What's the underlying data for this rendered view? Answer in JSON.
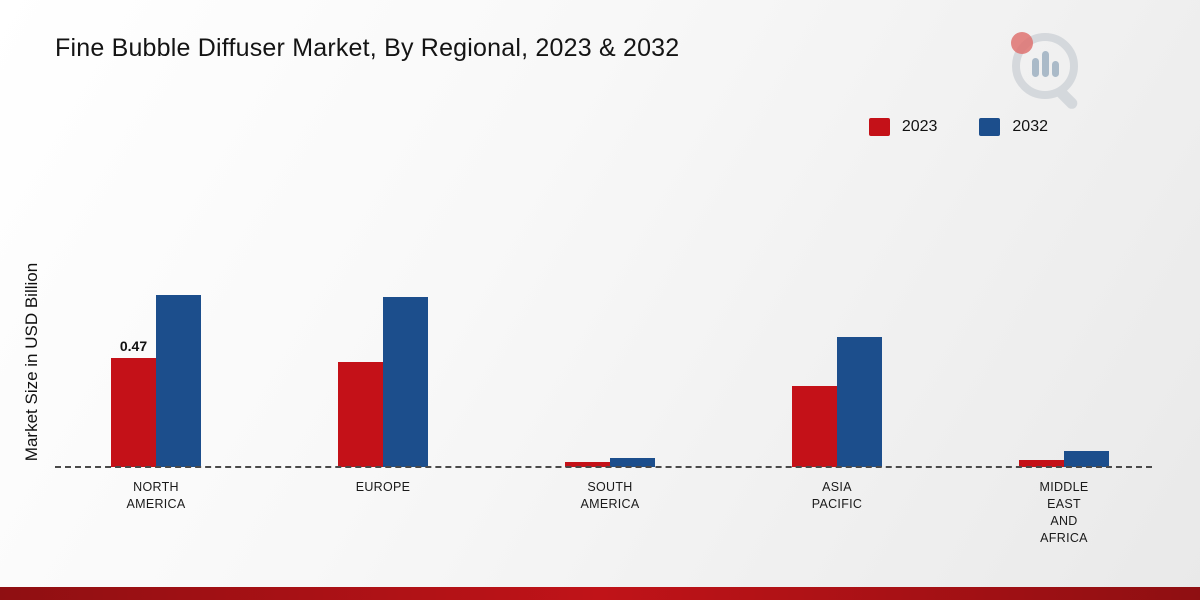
{
  "page": {
    "title": "Fine Bubble Diffuser Market, By Regional, 2023 & 2032",
    "ylabel": "Market Size in USD Billion"
  },
  "legend": {
    "items": [
      {
        "label": "2023",
        "color": "#c41118"
      },
      {
        "label": "2032",
        "color": "#1c4e8c"
      }
    ]
  },
  "chart_data": {
    "type": "bar",
    "title": "Fine Bubble Diffuser Market, By Regional, 2023 & 2032",
    "ylabel": "Market Size in USD Billion",
    "xlabel": "",
    "categories": [
      "NORTH AMERICA",
      "EUROPE",
      "SOUTH AMERICA",
      "ASIA PACIFIC",
      "MIDDLE EAST AND AFRICA"
    ],
    "category_lines": [
      [
        "NORTH",
        "AMERICA"
      ],
      [
        "EUROPE"
      ],
      [
        "SOUTH",
        "AMERICA"
      ],
      [
        "ASIA",
        "PACIFIC"
      ],
      [
        "MIDDLE",
        "EAST",
        "AND",
        "AFRICA"
      ]
    ],
    "series": [
      {
        "name": "2023",
        "color": "#c41118",
        "values": [
          0.47,
          0.45,
          0.02,
          0.35,
          0.03
        ]
      },
      {
        "name": "2032",
        "color": "#1c4e8c",
        "values": [
          0.74,
          0.73,
          0.04,
          0.56,
          0.07
        ]
      }
    ],
    "annotations": [
      {
        "category_index": 0,
        "series_index": 0,
        "text": "0.47"
      }
    ],
    "ylim": [
      0,
      0.8
    ],
    "grid": false,
    "baseline_style": "dashed",
    "legend_position": "top-right"
  },
  "footer": {
    "strip_colors": [
      "#8f0f12",
      "#c01318",
      "#8f0f12"
    ]
  }
}
